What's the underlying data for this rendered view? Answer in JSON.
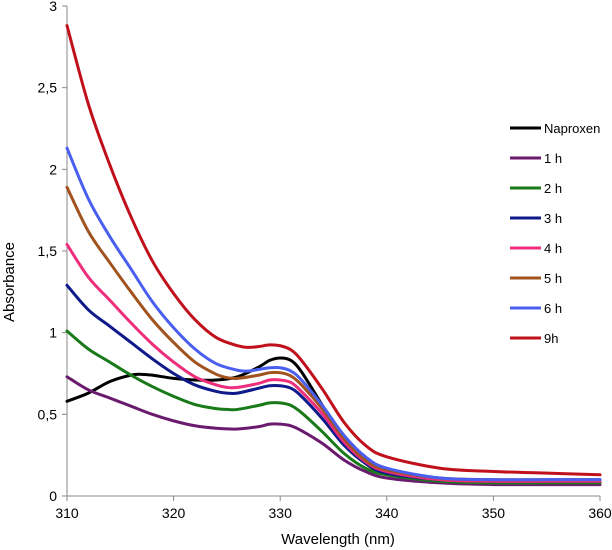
{
  "chart_data": {
    "type": "line",
    "title": "",
    "xlabel": "Wavelength (nm)",
    "ylabel": "Absorbance",
    "xlim": [
      310,
      360
    ],
    "ylim": [
      0,
      3
    ],
    "x_ticks": [
      310,
      320,
      330,
      340,
      350,
      360
    ],
    "x_tick_labels": [
      "310",
      "320",
      "330",
      "340",
      "350",
      "360"
    ],
    "y_ticks": [
      0,
      0.5,
      1,
      1.5,
      2,
      2.5,
      3
    ],
    "y_tick_labels": [
      "0",
      "0,5",
      "1",
      "1,5",
      "2",
      "2,5",
      "3"
    ],
    "grid": false,
    "legend_position": "right",
    "series": [
      {
        "name": "Naproxen",
        "color": "#000000",
        "x": [
          310,
          312,
          314,
          316,
          317,
          318,
          320,
          322,
          324,
          326,
          328,
          329,
          330,
          331,
          332,
          334,
          336,
          338,
          340,
          345,
          350,
          355,
          360
        ],
        "y": [
          0.58,
          0.63,
          0.7,
          0.74,
          0.745,
          0.74,
          0.72,
          0.71,
          0.71,
          0.73,
          0.79,
          0.83,
          0.845,
          0.83,
          0.76,
          0.55,
          0.34,
          0.2,
          0.14,
          0.1,
          0.09,
          0.09,
          0.09
        ]
      },
      {
        "name": "1 h",
        "color": "#6a1b6e",
        "x": [
          310,
          312,
          314,
          316,
          318,
          320,
          322,
          324,
          326,
          328,
          329,
          330,
          331,
          332,
          334,
          336,
          338,
          340,
          345,
          350,
          355,
          360
        ],
        "y": [
          0.73,
          0.65,
          0.6,
          0.55,
          0.5,
          0.46,
          0.43,
          0.415,
          0.41,
          0.425,
          0.44,
          0.44,
          0.43,
          0.4,
          0.32,
          0.22,
          0.15,
          0.11,
          0.08,
          0.07,
          0.07,
          0.07
        ]
      },
      {
        "name": "2 h",
        "color": "#1a7a1a",
        "x": [
          310,
          312,
          314,
          316,
          318,
          320,
          322,
          324,
          325,
          326,
          328,
          329,
          330,
          331,
          332,
          334,
          336,
          338,
          340,
          345,
          350,
          355,
          360
        ],
        "y": [
          1.01,
          0.9,
          0.82,
          0.74,
          0.67,
          0.61,
          0.56,
          0.535,
          0.53,
          0.53,
          0.555,
          0.57,
          0.57,
          0.555,
          0.51,
          0.39,
          0.26,
          0.17,
          0.13,
          0.09,
          0.08,
          0.08,
          0.08
        ]
      },
      {
        "name": "3 h",
        "color": "#0f1a8a",
        "x": [
          310,
          312,
          314,
          316,
          318,
          320,
          322,
          324,
          325,
          326,
          328,
          329,
          330,
          331,
          332,
          334,
          336,
          338,
          340,
          345,
          350,
          355,
          360
        ],
        "y": [
          1.29,
          1.14,
          1.04,
          0.94,
          0.84,
          0.75,
          0.68,
          0.64,
          0.63,
          0.63,
          0.66,
          0.675,
          0.675,
          0.66,
          0.61,
          0.47,
          0.31,
          0.2,
          0.14,
          0.1,
          0.09,
          0.09,
          0.09
        ]
      },
      {
        "name": "4 h",
        "color": "#ee2d7b",
        "x": [
          310,
          312,
          314,
          316,
          318,
          320,
          322,
          324,
          325,
          326,
          328,
          329,
          330,
          331,
          332,
          334,
          336,
          338,
          340,
          345,
          350,
          355,
          360
        ],
        "y": [
          1.54,
          1.34,
          1.2,
          1.06,
          0.93,
          0.82,
          0.73,
          0.68,
          0.665,
          0.665,
          0.69,
          0.71,
          0.71,
          0.695,
          0.64,
          0.5,
          0.33,
          0.21,
          0.15,
          0.1,
          0.09,
          0.09,
          0.09
        ]
      },
      {
        "name": "5 h",
        "color": "#a0531f",
        "x": [
          310,
          312,
          314,
          316,
          318,
          320,
          322,
          324,
          325,
          326,
          328,
          329,
          330,
          331,
          332,
          334,
          336,
          338,
          340,
          345,
          350,
          355,
          360
        ],
        "y": [
          1.89,
          1.62,
          1.43,
          1.25,
          1.08,
          0.94,
          0.82,
          0.745,
          0.725,
          0.72,
          0.74,
          0.755,
          0.755,
          0.735,
          0.68,
          0.53,
          0.35,
          0.22,
          0.16,
          0.11,
          0.1,
          0.1,
          0.1
        ]
      },
      {
        "name": "6 h",
        "color": "#4a5ef0",
        "x": [
          310,
          312,
          314,
          316,
          318,
          320,
          322,
          324,
          326,
          327,
          328,
          329,
          330,
          331,
          332,
          334,
          336,
          338,
          340,
          345,
          350,
          355,
          360
        ],
        "y": [
          2.13,
          1.82,
          1.59,
          1.39,
          1.19,
          1.03,
          0.9,
          0.81,
          0.77,
          0.765,
          0.775,
          0.785,
          0.785,
          0.765,
          0.71,
          0.55,
          0.37,
          0.24,
          0.17,
          0.11,
          0.1,
          0.1,
          0.1
        ]
      },
      {
        "name": "9h",
        "color": "#c0101c",
        "x": [
          310,
          312,
          314,
          316,
          318,
          320,
          322,
          324,
          326,
          327,
          328,
          329,
          330,
          331,
          332,
          334,
          336,
          338,
          340,
          345,
          350,
          355,
          360
        ],
        "y": [
          2.88,
          2.4,
          2.03,
          1.71,
          1.44,
          1.24,
          1.08,
          0.97,
          0.92,
          0.91,
          0.915,
          0.925,
          0.92,
          0.895,
          0.83,
          0.65,
          0.45,
          0.31,
          0.24,
          0.17,
          0.15,
          0.14,
          0.13
        ]
      }
    ]
  }
}
